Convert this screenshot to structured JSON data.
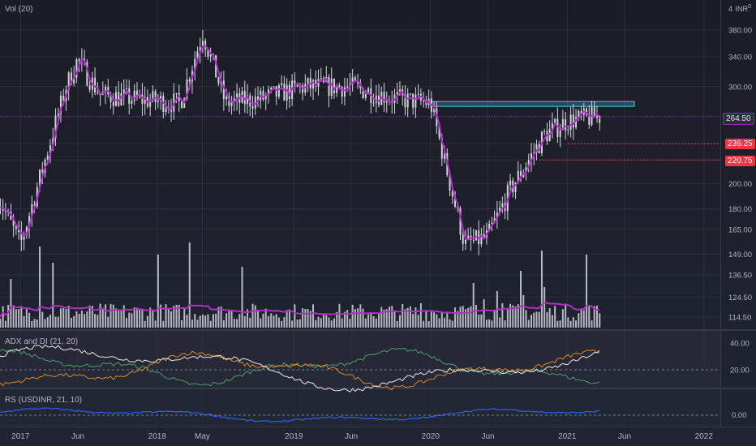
{
  "header": {
    "vol_label": "Vol (20)",
    "currency_top": "4",
    "currency_unit": "INR",
    "currency_sub": "0"
  },
  "panes": {
    "adx_label": "ADX and DI (21, 20)",
    "rs_label": "RS (USDINR, 21, 10)"
  },
  "colors": {
    "candle": "#d1d4dc",
    "ma": "#b02fc4",
    "volume": "#d1d4dc",
    "resistance_band": "#4fc3e8",
    "support_line": "#f23645",
    "price_line": "#9c27b0",
    "adx": "#e8e8e8",
    "di_plus": "#4f9b6f",
    "di_minus": "#d9892b",
    "rs_line": "#2962ff"
  },
  "price_tags": {
    "current": "264.50",
    "support_1": "236.25",
    "support_2": "220.75"
  },
  "chart_data": [
    {
      "type": "candlestick",
      "title": "",
      "y_scale": "log",
      "y_ticks": [
        "380.00",
        "340.00",
        "300.00",
        "264.50",
        "236.25",
        "220.75",
        "200.00",
        "180.00",
        "165.00",
        "149.00",
        "136.50",
        "124.50",
        "114.50"
      ],
      "x_ticks": [
        "2017",
        "Jun",
        "2018",
        "May",
        "2019",
        "Jun",
        "2020",
        "Jun",
        "2021",
        "Jun",
        "2022"
      ],
      "price_path": [
        {
          "t": "2016-11",
          "close": 190
        },
        {
          "t": "2017-01",
          "close": 155
        },
        {
          "t": "2017-03",
          "close": 215
        },
        {
          "t": "2017-05",
          "close": 300
        },
        {
          "t": "2017-06",
          "close": 335
        },
        {
          "t": "2017-08",
          "close": 290
        },
        {
          "t": "2017-11",
          "close": 285
        },
        {
          "t": "2018-03",
          "close": 280
        },
        {
          "t": "2018-05",
          "close": 375
        },
        {
          "t": "2018-07",
          "close": 280
        },
        {
          "t": "2018-10",
          "close": 285
        },
        {
          "t": "2019-02",
          "close": 300
        },
        {
          "t": "2019-06",
          "close": 300
        },
        {
          "t": "2019-10",
          "close": 285
        },
        {
          "t": "2020-01",
          "close": 280
        },
        {
          "t": "2020-04",
          "close": 155
        },
        {
          "t": "2020-06",
          "close": 160
        },
        {
          "t": "2020-08",
          "close": 195
        },
        {
          "t": "2020-11",
          "close": 245
        },
        {
          "t": "2021-01",
          "close": 260
        },
        {
          "t": "2021-04",
          "close": 265
        }
      ],
      "levels": {
        "resistance": 279,
        "current": 264.5,
        "support_1": 236.25,
        "support_2": 220.75
      }
    },
    {
      "type": "bar",
      "title": "Vol (20)",
      "ma_period": 20
    },
    {
      "type": "line",
      "title": "ADX and DI (21, 20)",
      "y_ticks": [
        "40.00",
        "20.00"
      ],
      "threshold": 20
    },
    {
      "type": "line",
      "title": "RS (USDINR, 21, 10)",
      "y_ticks": [
        "0.00"
      ]
    }
  ]
}
